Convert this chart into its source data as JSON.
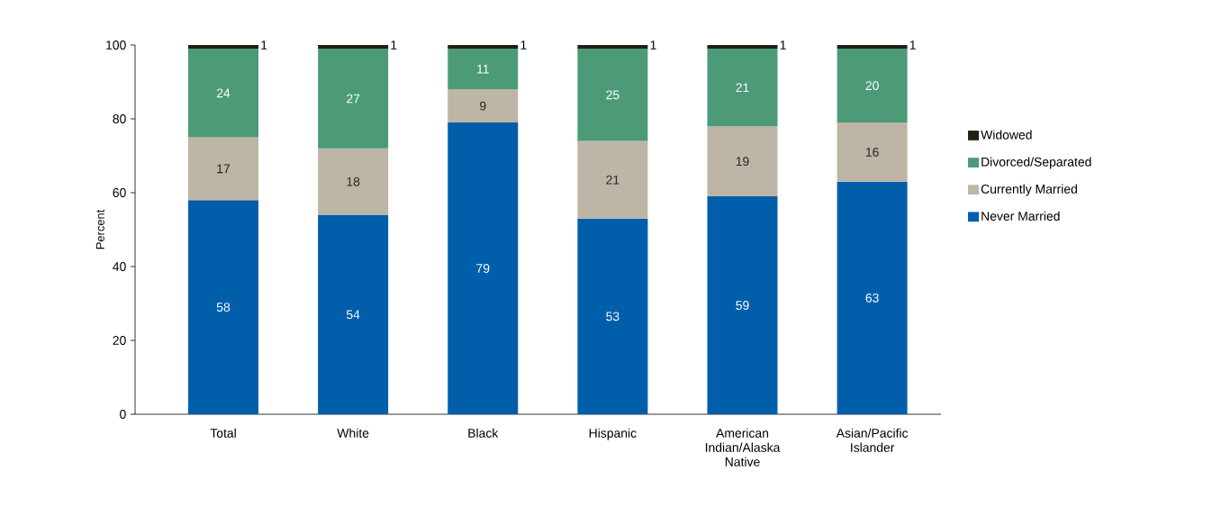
{
  "chart_data": {
    "type": "bar",
    "stacked": true,
    "ylabel": "Percent",
    "categories": [
      "Total",
      "White",
      "Black",
      "Hispanic",
      "American Indian/Alaska Native",
      "Asian/Pacific Islander"
    ],
    "series": [
      {
        "name": "Never Married",
        "color": "#005eab",
        "values": [
          58,
          54,
          79,
          53,
          59,
          63
        ]
      },
      {
        "name": "Currently Married",
        "color": "#bdb5a5",
        "values": [
          17,
          18,
          9,
          21,
          19,
          16
        ]
      },
      {
        "name": "Divorced/Separated",
        "color": "#4c9a78",
        "values": [
          24,
          27,
          11,
          25,
          21,
          20
        ]
      },
      {
        "name": "Widowed",
        "color": "#231f14",
        "values": [
          1,
          1,
          1,
          1,
          1,
          1
        ]
      }
    ],
    "ylim": [
      0,
      100
    ],
    "yticks": [
      0,
      20,
      40,
      60,
      80,
      100
    ],
    "grid": false,
    "legend": "right",
    "data_labels": true
  }
}
